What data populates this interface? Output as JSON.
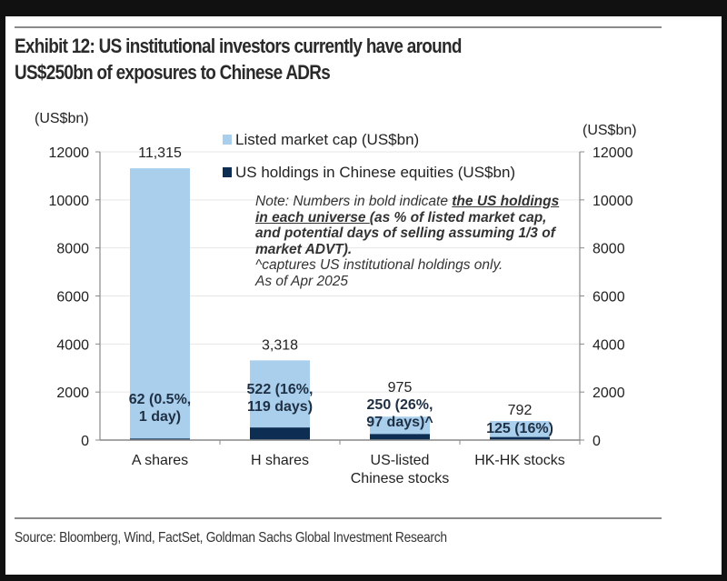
{
  "title_lines": [
    "Exhibit 12: US institutional investors currently have around",
    "US$250bn of exposures to Chinese ADRs"
  ],
  "source": "Source: Bloomberg, Wind, FactSet, Goldman Sachs Global Investment Research",
  "note": {
    "prefix": "Note: Numbers in bold indicate ",
    "underlined": "the US holdings in each universe ",
    "bold_rest": "(as % of listed market cap, and potential days of selling assuming 1/3 of market ADVT).",
    "line2": "^captures US institutional holdings only.",
    "line3": "As of Apr 2025"
  },
  "colors": {
    "listed": "#a9cfec",
    "holdings": "#0d2d52",
    "axis": "#888888",
    "grid": "#e6e6e6",
    "text": "#222222"
  },
  "chart_data": {
    "type": "bar",
    "title": "Exhibit 12: US institutional investors currently have around US$250bn of exposures to Chinese ADRs",
    "categories": [
      [
        "A shares"
      ],
      [
        "H shares"
      ],
      [
        "US-listed",
        "Chinese stocks"
      ],
      [
        "HK-HK stocks"
      ]
    ],
    "series": [
      {
        "name": "Listed market cap (US$bn)",
        "values": [
          11315,
          3318,
          975,
          792
        ]
      },
      {
        "name": "US holdings in Chinese equities (US$bn)",
        "values": [
          62,
          522,
          250,
          125
        ]
      }
    ],
    "top_labels": [
      "11,315",
      "3,318",
      "975",
      "792"
    ],
    "holding_labels": [
      [
        "62 (0.5%,",
        "1 day)"
      ],
      [
        "522 (16%,",
        "119 days)"
      ],
      [
        "250 (26%,",
        "97 days)^"
      ],
      [
        "125 (16%)"
      ]
    ],
    "ylabel_left": "(US$bn)",
    "ylabel_right": "(US$bn)",
    "ylim": [
      0,
      12000
    ],
    "yticks": [
      0,
      2000,
      4000,
      6000,
      8000,
      10000,
      12000
    ],
    "grid": true,
    "legend_position": "top-center"
  }
}
